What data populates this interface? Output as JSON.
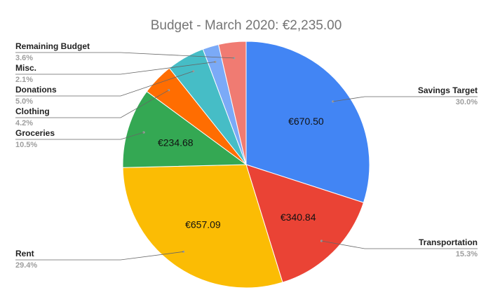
{
  "chart_data": {
    "type": "pie",
    "title": "Budget - March 2020: €2,235.00",
    "slices": [
      {
        "name": "Savings Target",
        "value": 670.5,
        "percent_label": "30.0%",
        "value_label": "€670.50",
        "color": "#4285f4"
      },
      {
        "name": "Transportation",
        "value": 340.84,
        "percent_label": "15.3%",
        "value_label": "€340.84",
        "color": "#ea4335"
      },
      {
        "name": "Rent",
        "value": 657.09,
        "percent_label": "29.4%",
        "value_label": "€657.09",
        "color": "#fbbc04"
      },
      {
        "name": "Groceries",
        "value": 234.68,
        "percent_label": "10.5%",
        "value_label": "€234.68",
        "color": "#34a853"
      },
      {
        "name": "Clothing",
        "value": 93.87,
        "percent_label": "4.2%",
        "value_label": "",
        "color": "#ff6d01"
      },
      {
        "name": "Donations",
        "value": 111.75,
        "percent_label": "5.0%",
        "value_label": "",
        "color": "#46bdc6"
      },
      {
        "name": "Misc.",
        "value": 46.94,
        "percent_label": "2.1%",
        "value_label": "",
        "color": "#7baaf7"
      },
      {
        "name": "Remaining Budget",
        "value": 80.46,
        "percent_label": "3.6%",
        "value_label": "",
        "color": "#f07b72"
      }
    ],
    "start_angle_deg": 0,
    "direction": "clockwise",
    "legend": "none"
  }
}
